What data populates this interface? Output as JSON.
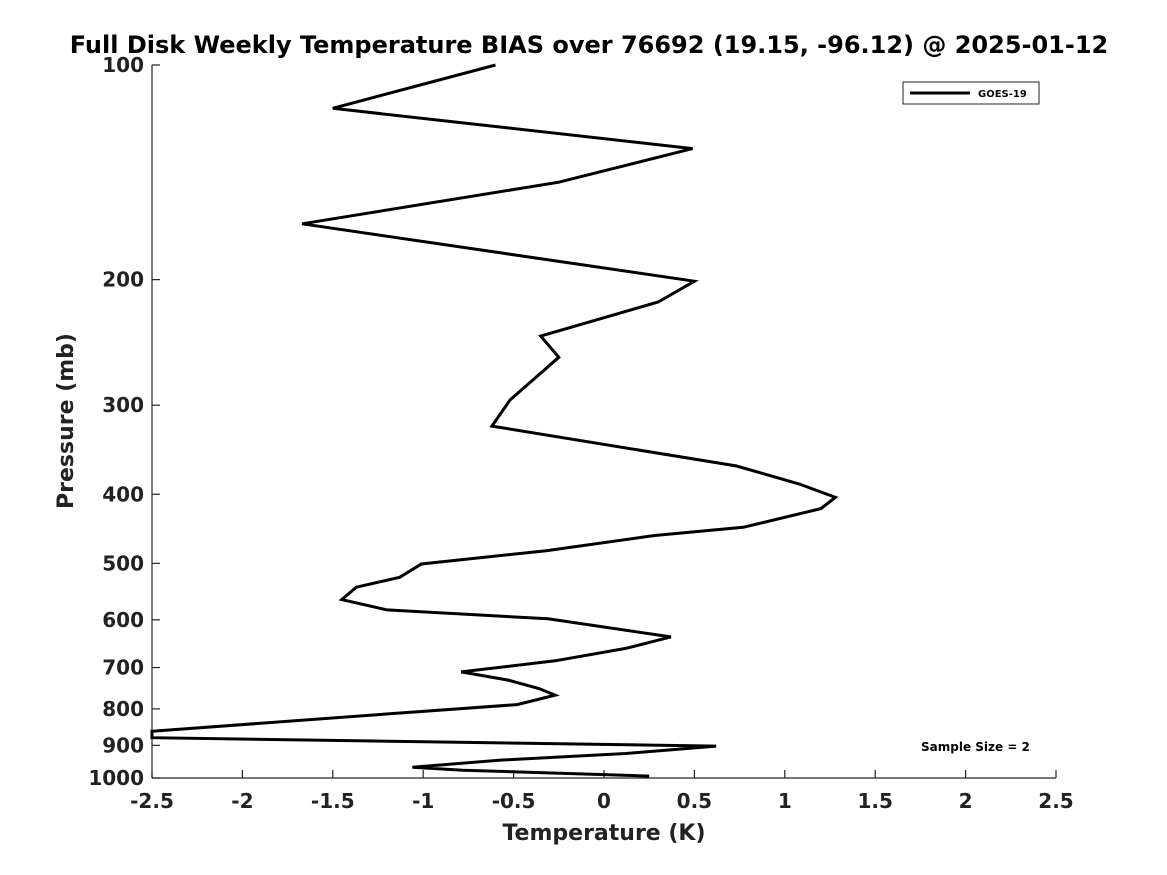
{
  "chart_data": {
    "type": "line",
    "title": "Full Disk Weekly Temperature BIAS over 76692 (19.15, -96.12) @ 2025-01-12",
    "xlabel": "Temperature (K)",
    "ylabel": "Pressure (mb)",
    "xlim": [
      -2.5,
      2.5
    ],
    "ylim": [
      100,
      1000
    ],
    "yscale": "log",
    "y_reversed": true,
    "x_ticks": [
      "-2.5",
      "-2",
      "-1.5",
      "-1",
      "-0.5",
      "0",
      "0.5",
      "1",
      "1.5",
      "2",
      "2.5"
    ],
    "y_ticks": [
      "100",
      "200",
      "300",
      "400",
      "500",
      "600",
      "700",
      "800",
      "900",
      "1000"
    ],
    "grid": false,
    "legend_position": "top-right",
    "annotation": "Sample Size = 2",
    "series": [
      {
        "name": "GOES-19",
        "color": "#000000",
        "x": [
          -0.6,
          -1.5,
          0.49,
          -0.25,
          -1.67,
          0.5,
          0.3,
          -0.35,
          -0.25,
          -0.52,
          -0.62,
          0.73,
          1.08,
          1.28,
          1.2,
          0.77,
          0.28,
          -0.32,
          -1.01,
          -1.13,
          -1.37,
          -1.45,
          -1.2,
          -0.31,
          0.37,
          0.12,
          -0.27,
          -0.79,
          -0.53,
          -0.36,
          -0.27,
          -0.48,
          -1.37,
          -2.5,
          -2.5,
          0.62,
          0.12,
          -0.58,
          -1.06,
          -0.78,
          0.25
        ],
        "y": [
          100,
          115,
          131,
          146,
          167,
          201,
          215,
          240,
          257,
          295,
          321,
          365,
          387,
          404,
          419,
          445,
          457,
          480,
          501,
          523,
          540,
          562,
          581,
          598,
          634,
          658,
          685,
          710,
          729,
          749,
          765,
          789,
          819,
          860,
          878,
          902,
          924,
          944,
          966,
          975,
          994
        ]
      }
    ]
  }
}
